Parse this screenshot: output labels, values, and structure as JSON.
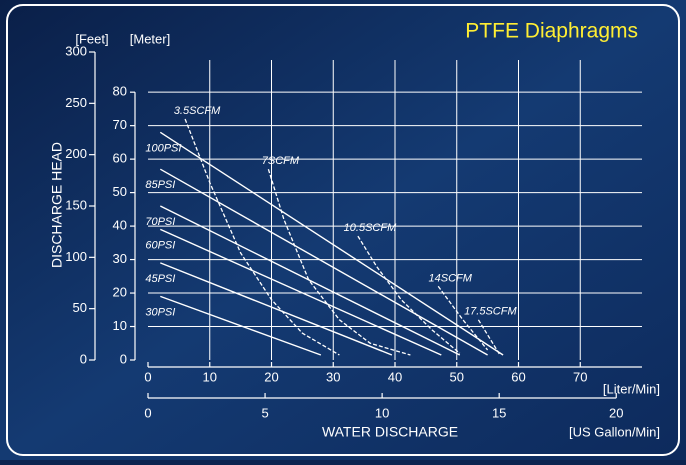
{
  "chart_data": {
    "type": "line",
    "title": "PTFE Diaphragms",
    "y_label": "DISCHARGE HEAD",
    "y_unit_label": "[Meter]",
    "y2_unit_label": "[Feet]",
    "x_label": "WATER DISCHARGE",
    "x_unit_label": "[Liter/Min]",
    "x2_unit_label": "[US Gallon/Min]",
    "xlim": [
      0,
      80
    ],
    "xticks": [
      0,
      10,
      20,
      30,
      40,
      50,
      60,
      70
    ],
    "x2lim": [
      0,
      21.1
    ],
    "x2ticks": [
      0,
      5,
      10,
      15,
      20
    ],
    "ylim": [
      0,
      92
    ],
    "yticks": [
      0,
      10,
      20,
      30,
      40,
      50,
      60,
      70,
      80
    ],
    "y2lim": [
      0,
      300
    ],
    "y2ticks": [
      0,
      50,
      100,
      150,
      200,
      250,
      300
    ],
    "grid": true,
    "series": [
      {
        "name": "100PSI",
        "style": "solid",
        "color": "#ffffff",
        "x": [
          2,
          57.5
        ],
        "values": [
          68,
          1.5
        ]
      },
      {
        "name": "85PSI",
        "style": "solid",
        "color": "#ffffff",
        "x": [
          2,
          55
        ],
        "values": [
          57,
          1.5
        ]
      },
      {
        "name": "70PSI",
        "style": "solid",
        "color": "#ffffff",
        "x": [
          2,
          50.5
        ],
        "values": [
          46,
          1.5
        ]
      },
      {
        "name": "60PSI",
        "style": "solid",
        "color": "#ffffff",
        "x": [
          2,
          47.5
        ],
        "values": [
          39,
          1.5
        ]
      },
      {
        "name": "45PSI",
        "style": "solid",
        "color": "#ffffff",
        "x": [
          2,
          39.5
        ],
        "values": [
          29,
          1.5
        ]
      },
      {
        "name": "30PSI",
        "style": "solid",
        "color": "#ffffff",
        "x": [
          2,
          28
        ],
        "values": [
          19,
          1.5
        ]
      },
      {
        "name": "3.5SCFM",
        "style": "dashed",
        "color": "#ffffff",
        "x": [
          6,
          10,
          15,
          20,
          25,
          31
        ],
        "values": [
          72,
          53,
          32,
          18,
          8,
          1.5
        ]
      },
      {
        "name": "7SCFM",
        "style": "dashed",
        "color": "#ffffff",
        "x": [
          19.5,
          22,
          26,
          31,
          36,
          42.5
        ],
        "values": [
          57,
          42,
          24,
          12,
          5,
          1.5
        ]
      },
      {
        "name": "10.5SCFM",
        "style": "dashed",
        "color": "#ffffff",
        "x": [
          34,
          37,
          41,
          46,
          50.5
        ],
        "values": [
          37,
          28,
          18,
          9,
          2
        ]
      },
      {
        "name": "14SCFM",
        "style": "dashed",
        "color": "#ffffff",
        "x": [
          47,
          51,
          55
        ],
        "values": [
          22,
          12,
          3
        ]
      },
      {
        "name": "17.5SCFM",
        "style": "dashed",
        "color": "#ffffff",
        "x": [
          53.5,
          55.5,
          57
        ],
        "values": [
          12,
          6,
          1.5
        ]
      }
    ]
  }
}
